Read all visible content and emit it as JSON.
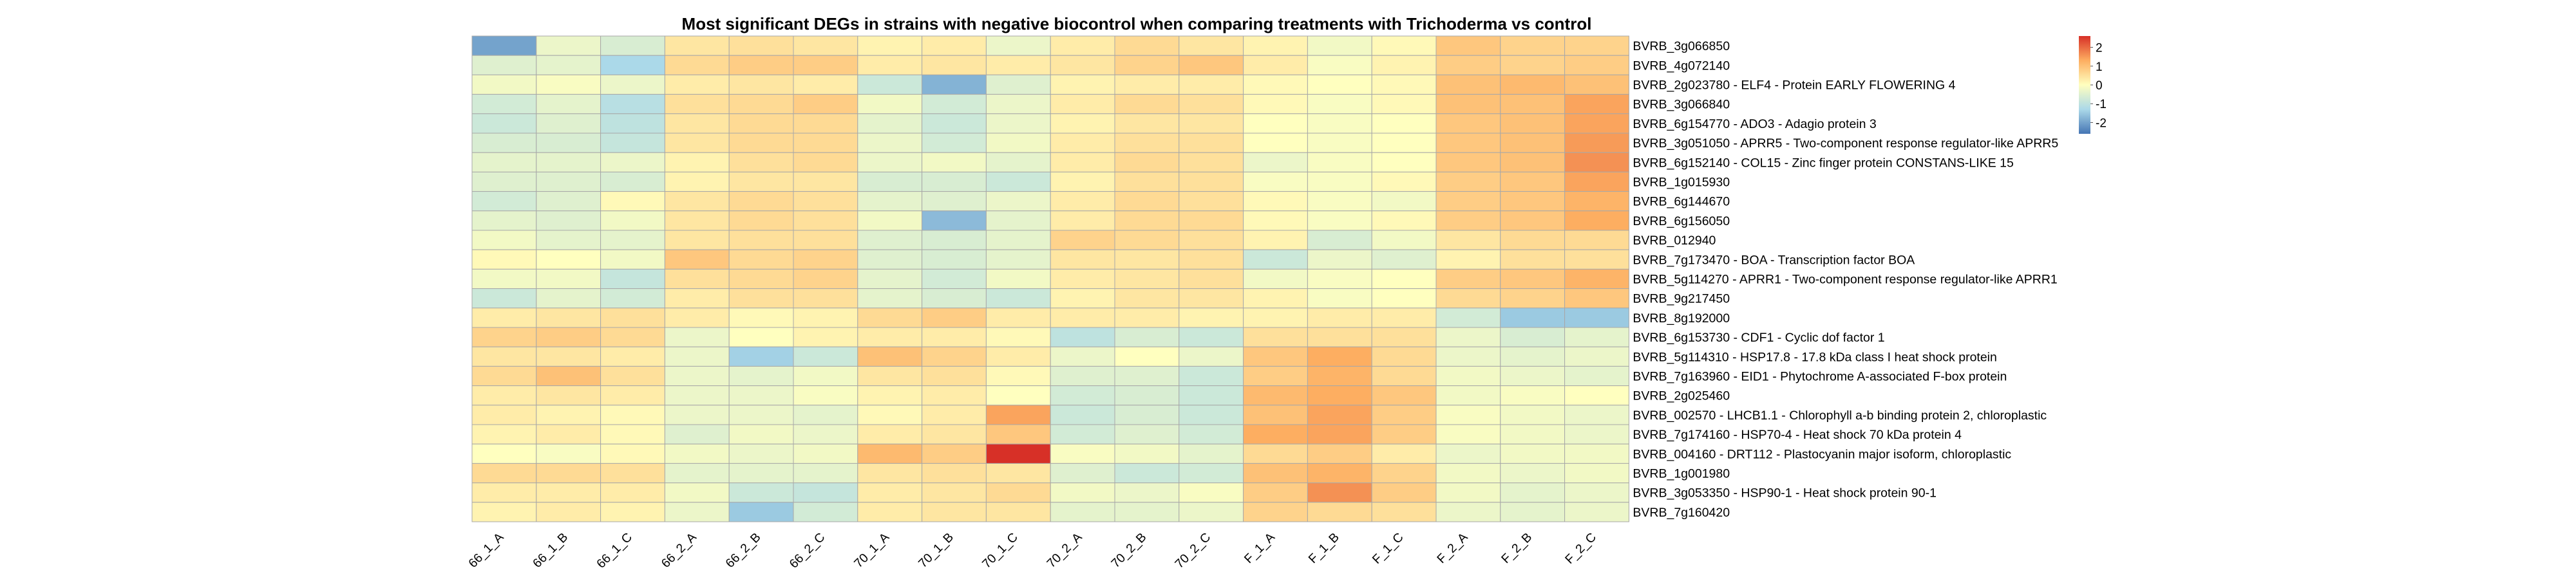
{
  "chart_data": {
    "type": "heatmap",
    "title": "Most significant DEGs in strains with negative biocontrol when comparing treatments with Trichoderma vs control",
    "columns": [
      "66_1_A",
      "66_1_B",
      "66_1_C",
      "66_2_A",
      "66_2_B",
      "66_2_C",
      "70_1_A",
      "70_1_B",
      "70_1_C",
      "70_2_A",
      "70_2_B",
      "70_2_C",
      "F_1_A",
      "F_1_B",
      "F_1_C",
      "F_2_A",
      "F_2_B",
      "F_2_C"
    ],
    "rows": [
      "BVRB_3g066850",
      "BVRB_4g072140",
      "BVRB_2g023780 - ELF4 - Protein EARLY FLOWERING 4",
      "BVRB_3g066840",
      "BVRB_6g154770 - ADO3 - Adagio protein 3",
      "BVRB_3g051050 - APRR5 - Two-component response regulator-like APRR5",
      "BVRB_6g152140 - COL15 - Zinc finger protein CONSTANS-LIKE 15",
      "BVRB_1g015930",
      "BVRB_6g144670",
      "BVRB_6g156050",
      "BVRB_012940",
      "BVRB_7g173470 - BOA - Transcription factor BOA",
      "BVRB_5g114270 - APRR1 - Two-component response regulator-like APRR1",
      "BVRB_9g217450",
      "BVRB_8g192000",
      "BVRB_6g153730 - CDF1 - Cyclic dof factor 1",
      "BVRB_5g114310 - HSP17.8 - 17.8 kDa class I heat shock protein",
      "BVRB_7g163960 - EID1 - Phytochrome A-associated F-box protein",
      "BVRB_2g025460",
      "BVRB_002570 - LHCB1.1 - Chlorophyll a-b binding protein 2, chloroplastic",
      "BVRB_7g174160 - HSP70-4 - Heat shock 70 kDa protein 4",
      "BVRB_004160 - DRT112 - Plastocyanin major isoform, chloroplastic",
      "BVRB_1g001980",
      "BVRB_3g053350 - HSP90-1 - Heat shock protein 90-1",
      "BVRB_7g160420"
    ],
    "values": [
      [
        -2.0,
        -0.3,
        -0.6,
        0.4,
        0.5,
        0.4,
        0.2,
        0.3,
        -0.3,
        0.3,
        0.6,
        0.4,
        0.2,
        -0.2,
        0.1,
        0.9,
        0.7,
        0.7
      ],
      [
        -0.5,
        -0.4,
        -1.3,
        0.6,
        0.8,
        0.8,
        0.3,
        0.4,
        0.3,
        0.4,
        0.7,
        0.9,
        0.3,
        -0.1,
        0.2,
        0.8,
        0.7,
        0.8
      ],
      [
        -0.2,
        -0.1,
        -0.3,
        0.3,
        0.4,
        0.3,
        -0.8,
        -1.8,
        -0.5,
        0.2,
        0.3,
        0.3,
        0.1,
        0.0,
        0.1,
        1.0,
        1.1,
        1.0
      ],
      [
        -0.7,
        -0.4,
        -1.1,
        0.5,
        0.6,
        0.8,
        -0.2,
        -0.7,
        -0.3,
        0.3,
        0.6,
        0.5,
        0.1,
        -0.1,
        0.1,
        1.0,
        1.0,
        1.4
      ],
      [
        -0.8,
        -0.5,
        -1.0,
        0.4,
        0.6,
        0.6,
        -0.4,
        -0.8,
        -0.3,
        0.2,
        0.4,
        0.4,
        0.0,
        -0.1,
        0.0,
        0.9,
        1.0,
        1.4
      ],
      [
        -0.6,
        -0.6,
        -0.9,
        0.4,
        0.6,
        0.6,
        -0.3,
        -0.7,
        -0.2,
        0.3,
        0.5,
        0.5,
        0.0,
        -0.1,
        0.0,
        0.9,
        1.0,
        1.5
      ],
      [
        -0.4,
        -0.4,
        -0.3,
        0.2,
        0.5,
        0.6,
        -0.3,
        -0.2,
        -0.4,
        0.3,
        0.6,
        0.5,
        -0.3,
        -0.1,
        0.0,
        0.9,
        1.0,
        1.6
      ],
      [
        -0.5,
        -0.5,
        -0.6,
        0.2,
        0.4,
        0.4,
        -0.6,
        -0.6,
        -0.8,
        0.2,
        0.5,
        0.5,
        -0.1,
        -0.1,
        0.1,
        0.8,
        0.9,
        1.4
      ],
      [
        -0.7,
        -0.5,
        0.1,
        0.4,
        0.6,
        0.5,
        -0.4,
        -0.5,
        -0.3,
        0.3,
        0.6,
        0.5,
        0.1,
        -0.1,
        -0.2,
        0.8,
        0.9,
        1.2
      ],
      [
        -0.4,
        -0.5,
        -0.2,
        0.4,
        0.6,
        0.5,
        -0.2,
        -1.7,
        -0.4,
        0.3,
        0.6,
        0.6,
        0.1,
        -0.1,
        0.1,
        0.8,
        0.9,
        1.3
      ],
      [
        -0.2,
        -0.4,
        -0.4,
        0.4,
        0.5,
        0.5,
        -0.5,
        -0.6,
        -0.4,
        0.7,
        0.6,
        0.5,
        0.2,
        -0.6,
        -0.2,
        0.4,
        0.6,
        0.6
      ],
      [
        0.1,
        0.0,
        -0.2,
        0.9,
        0.6,
        0.7,
        -0.5,
        -0.6,
        -0.4,
        0.4,
        0.4,
        0.5,
        -0.8,
        -0.3,
        -0.5,
        0.2,
        0.5,
        0.5
      ],
      [
        -0.2,
        -0.2,
        -0.9,
        0.5,
        0.6,
        0.7,
        -0.4,
        -0.7,
        -0.2,
        0.3,
        0.4,
        0.5,
        -0.2,
        -0.1,
        0.0,
        0.8,
        0.9,
        1.2
      ],
      [
        -0.8,
        -0.4,
        -0.7,
        0.3,
        0.5,
        0.5,
        -0.4,
        -0.6,
        -0.8,
        0.2,
        0.4,
        0.4,
        0.2,
        -0.1,
        0.0,
        0.6,
        0.7,
        0.9
      ],
      [
        0.3,
        0.4,
        0.5,
        0.3,
        0.1,
        0.2,
        0.6,
        0.8,
        0.3,
        0.3,
        0.3,
        0.2,
        0.2,
        0.3,
        0.3,
        -0.7,
        -1.5,
        -1.5
      ],
      [
        0.7,
        0.8,
        0.6,
        -0.3,
        0.0,
        0.2,
        0.3,
        0.3,
        0.1,
        -1.0,
        -0.6,
        -0.8,
        0.5,
        0.5,
        0.5,
        -0.3,
        -0.6,
        -0.4
      ],
      [
        0.4,
        0.4,
        0.3,
        -0.3,
        -1.4,
        -0.8,
        1.0,
        0.7,
        0.3,
        -0.3,
        0.0,
        -0.3,
        0.9,
        1.3,
        0.6,
        -0.3,
        -0.4,
        -0.3
      ],
      [
        0.6,
        1.0,
        0.5,
        -0.3,
        -0.4,
        -0.2,
        0.4,
        0.5,
        0.1,
        -0.5,
        -0.5,
        -0.8,
        0.8,
        1.2,
        0.6,
        -0.2,
        -0.3,
        -0.4
      ],
      [
        0.3,
        0.4,
        0.3,
        -0.3,
        -0.3,
        -0.1,
        0.2,
        0.3,
        0.0,
        -0.7,
        -0.6,
        -0.8,
        1.1,
        1.3,
        0.9,
        -0.2,
        -0.1,
        0.0
      ],
      [
        0.3,
        0.2,
        0.1,
        -0.3,
        -0.3,
        -0.4,
        0.1,
        0.3,
        1.4,
        -0.8,
        -0.6,
        -0.8,
        1.0,
        1.4,
        0.8,
        -0.1,
        -0.2,
        -0.3
      ],
      [
        0.2,
        0.3,
        0.1,
        -0.5,
        -0.2,
        -0.3,
        0.3,
        0.4,
        0.9,
        -0.7,
        -0.5,
        -0.7,
        1.3,
        1.4,
        0.8,
        -0.1,
        -0.2,
        -0.3
      ],
      [
        0.0,
        -0.1,
        0.1,
        -0.2,
        -0.3,
        -0.2,
        1.1,
        0.8,
        2.6,
        -0.1,
        -0.2,
        -0.4,
        0.6,
        0.8,
        0.3,
        -0.3,
        -0.2,
        -0.2
      ],
      [
        0.6,
        0.6,
        0.5,
        -0.4,
        -0.4,
        -0.4,
        0.4,
        0.5,
        0.4,
        -0.5,
        -0.8,
        -0.7,
        1.0,
        1.2,
        0.7,
        -0.2,
        -0.3,
        -0.2
      ],
      [
        0.3,
        0.3,
        0.3,
        -0.2,
        -0.8,
        -0.9,
        0.3,
        0.4,
        0.6,
        -0.2,
        -0.3,
        -0.1,
        0.8,
        1.6,
        0.8,
        -0.2,
        -0.4,
        -0.3
      ],
      [
        0.2,
        0.3,
        0.2,
        -0.3,
        -1.5,
        -0.7,
        0.3,
        0.4,
        0.4,
        -0.4,
        -0.4,
        -0.3,
        0.7,
        0.6,
        0.5,
        -0.3,
        -0.4,
        -0.3
      ]
    ],
    "legend": {
      "ticks": [
        2,
        1,
        0,
        -1,
        -2
      ],
      "range": [
        -2.6,
        2.6
      ],
      "placement": "top-right"
    },
    "colors": {
      "low": "#4575b4",
      "lowmid": "#abd9e9",
      "mid": "#ffffbf",
      "highmid": "#fdae61",
      "high": "#d73027"
    }
  }
}
